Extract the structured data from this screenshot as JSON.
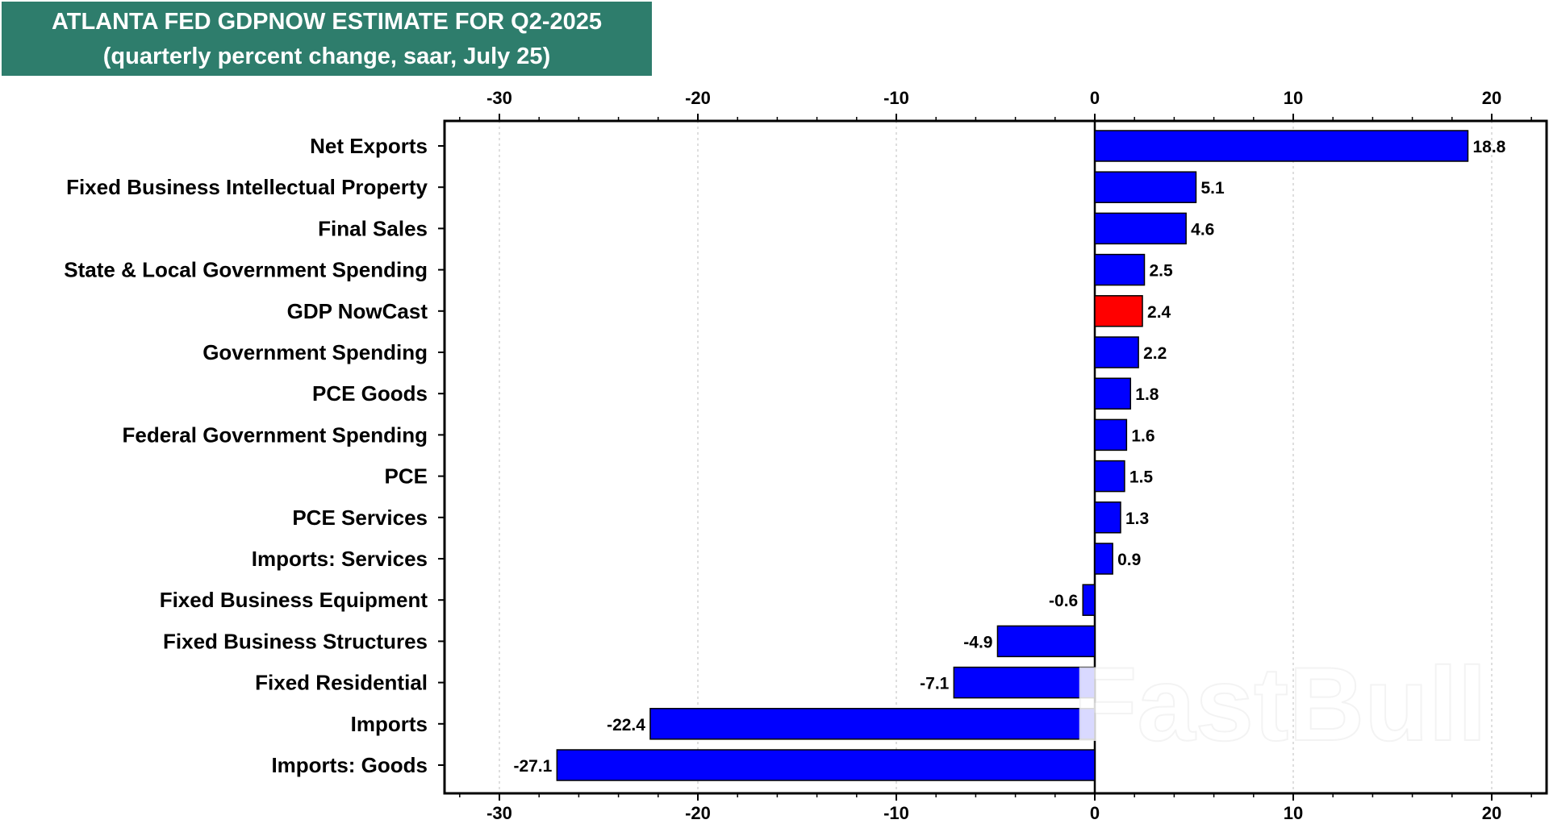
{
  "chart_data": {
    "type": "bar",
    "orientation": "horizontal",
    "title": "ATLANTA FED GDPNOW ESTIMATE FOR Q2-2025",
    "subtitle": "(quarterly percent change, saar, July 25)",
    "xlim": [
      -33,
      22.5
    ],
    "xticks": [
      -30,
      -20,
      -10,
      0,
      10,
      20
    ],
    "xtick_labels": [
      "-30",
      "-20",
      "-10",
      "0",
      "10",
      "20"
    ],
    "grid": true,
    "categories": [
      "Net Exports",
      "Fixed Business Intellectual Property",
      "Final Sales",
      "State & Local Government Spending",
      "GDP NowCast",
      "Government Spending",
      "PCE Goods",
      "Federal Government Spending",
      "PCE",
      "PCE Services",
      "Imports: Services",
      "Fixed Business Equipment",
      "Fixed Business Structures",
      "Fixed Residential",
      "Imports",
      "Imports: Goods"
    ],
    "values": [
      18.8,
      5.1,
      4.6,
      2.5,
      2.4,
      2.2,
      1.8,
      1.6,
      1.5,
      1.3,
      0.9,
      -0.6,
      -4.9,
      -7.1,
      -22.4,
      -27.1
    ],
    "value_labels": [
      "18.8",
      "5.1",
      "4.6",
      "2.5",
      "2.4",
      "2.2",
      "1.8",
      "1.6",
      "1.5",
      "1.3",
      "0.9",
      "-0.6",
      "-4.9",
      "-7.1",
      "-22.4",
      "-27.1"
    ],
    "highlight_category": "GDP NowCast",
    "colors": {
      "bar": "#0000ff",
      "highlight": "#ff0000",
      "title_background": "#2e7d6c"
    }
  },
  "watermark": "FastBull"
}
